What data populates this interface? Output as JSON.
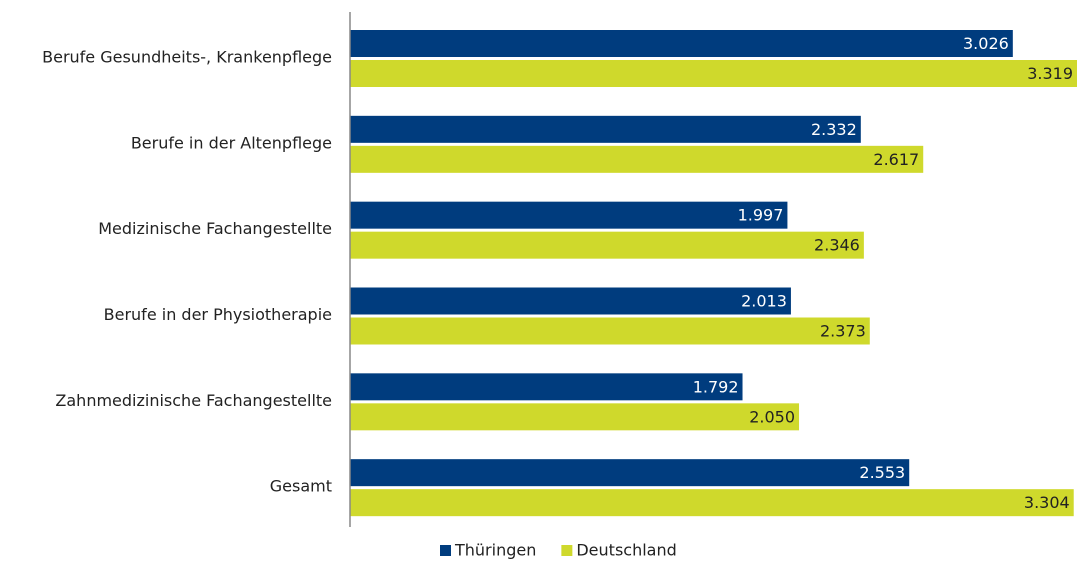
{
  "chart_data": {
    "type": "hbar",
    "categories": [
      "Berufe Gesundheits-, Krankenpflege",
      "Berufe in der Altenpflege",
      "Medizinische Fachangestellte",
      "Berufe in der Physiotherapie",
      "Zahnmedizinische Fachangestellte",
      "Gesamt"
    ],
    "series": [
      {
        "name": "Thüringen",
        "color": "#003c7e",
        "values": [
          3026,
          2332,
          1997,
          2013,
          1792,
          2553
        ],
        "value_labels": [
          "3.026",
          "2.332",
          "1.997",
          "2.013",
          "1.792",
          "2.553"
        ]
      },
      {
        "name": "Deutschland",
        "color": "#cfd92c",
        "values": [
          3319,
          2617,
          2346,
          2373,
          2050,
          3304
        ],
        "value_labels": [
          "3.319",
          "2.617",
          "2.346",
          "2.373",
          "2.050",
          "3.304"
        ]
      }
    ],
    "legend": "bottom"
  }
}
